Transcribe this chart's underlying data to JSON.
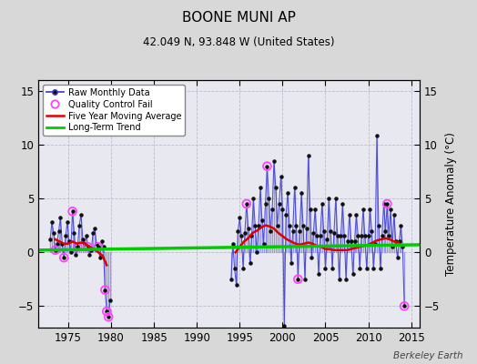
{
  "title": "BOONE MUNI AP",
  "subtitle": "42.049 N, 93.848 W (United States)",
  "ylabel": "Temperature Anomaly (°C)",
  "credit": "Berkeley Earth",
  "bg_color": "#d8d8d8",
  "plot_bg_color": "#e8e8f0",
  "ylim": [
    -7,
    16
  ],
  "xlim": [
    1971.5,
    2016.0
  ],
  "yticks": [
    -5,
    0,
    5,
    10,
    15
  ],
  "xticks": [
    1975,
    1980,
    1985,
    1990,
    1995,
    2000,
    2005,
    2010,
    2015
  ],
  "raw_color": "#4444cc",
  "raw_line_color": "#8888ee",
  "dot_color": "#111111",
  "qc_color": "#ff44ff",
  "ma_color": "#dd0000",
  "trend_color": "#00cc00",
  "gap_start": 1979.9,
  "gap_end": 1993.8,
  "raw_data": [
    [
      1972.9,
      1.2
    ],
    [
      1973.1,
      2.8
    ],
    [
      1973.3,
      1.8
    ],
    [
      1973.5,
      0.2
    ],
    [
      1973.7,
      0.8
    ],
    [
      1973.9,
      2.0
    ],
    [
      1974.1,
      3.2
    ],
    [
      1974.3,
      0.8
    ],
    [
      1974.5,
      -0.5
    ],
    [
      1974.7,
      1.5
    ],
    [
      1974.9,
      2.8
    ],
    [
      1975.1,
      1.0
    ],
    [
      1975.3,
      0.0
    ],
    [
      1975.5,
      3.8
    ],
    [
      1975.7,
      1.8
    ],
    [
      1975.9,
      -0.2
    ],
    [
      1976.1,
      0.5
    ],
    [
      1976.3,
      2.5
    ],
    [
      1976.5,
      3.5
    ],
    [
      1976.7,
      1.2
    ],
    [
      1976.9,
      0.8
    ],
    [
      1977.1,
      1.5
    ],
    [
      1977.3,
      0.5
    ],
    [
      1977.5,
      -0.2
    ],
    [
      1977.7,
      0.2
    ],
    [
      1977.9,
      1.8
    ],
    [
      1978.1,
      2.2
    ],
    [
      1978.3,
      0.8
    ],
    [
      1978.5,
      0.5
    ],
    [
      1978.7,
      -0.5
    ],
    [
      1978.9,
      1.0
    ],
    [
      1979.1,
      0.5
    ],
    [
      1979.3,
      -3.5
    ],
    [
      1979.5,
      -5.5
    ],
    [
      1979.7,
      -6.0
    ],
    [
      1979.9,
      -4.5
    ],
    [
      1994.0,
      -2.5
    ],
    [
      1994.2,
      0.8
    ],
    [
      1994.4,
      -1.5
    ],
    [
      1994.6,
      -3.0
    ],
    [
      1994.8,
      2.0
    ],
    [
      1995.0,
      3.2
    ],
    [
      1995.2,
      1.5
    ],
    [
      1995.4,
      -1.5
    ],
    [
      1995.6,
      1.8
    ],
    [
      1995.8,
      4.5
    ],
    [
      1996.0,
      2.2
    ],
    [
      1996.2,
      -1.0
    ],
    [
      1996.4,
      1.5
    ],
    [
      1996.6,
      5.0
    ],
    [
      1996.8,
      2.5
    ],
    [
      1997.0,
      0.0
    ],
    [
      1997.2,
      2.5
    ],
    [
      1997.4,
      6.0
    ],
    [
      1997.6,
      3.0
    ],
    [
      1997.8,
      0.8
    ],
    [
      1998.0,
      4.5
    ],
    [
      1998.2,
      8.0
    ],
    [
      1998.4,
      5.0
    ],
    [
      1998.6,
      2.0
    ],
    [
      1998.8,
      4.0
    ],
    [
      1999.0,
      8.5
    ],
    [
      1999.2,
      6.0
    ],
    [
      1999.4,
      2.5
    ],
    [
      1999.6,
      4.5
    ],
    [
      1999.8,
      7.0
    ],
    [
      2000.0,
      4.0
    ],
    [
      2000.2,
      -6.8
    ],
    [
      2000.4,
      3.5
    ],
    [
      2000.6,
      5.5
    ],
    [
      2000.8,
      2.5
    ],
    [
      2001.0,
      -1.0
    ],
    [
      2001.2,
      2.0
    ],
    [
      2001.4,
      6.0
    ],
    [
      2001.6,
      2.5
    ],
    [
      2001.8,
      -2.5
    ],
    [
      2002.0,
      2.0
    ],
    [
      2002.2,
      5.5
    ],
    [
      2002.4,
      2.5
    ],
    [
      2002.6,
      -2.5
    ],
    [
      2002.8,
      2.2
    ],
    [
      2003.0,
      9.0
    ],
    [
      2003.2,
      4.0
    ],
    [
      2003.4,
      -0.5
    ],
    [
      2003.6,
      1.8
    ],
    [
      2003.8,
      4.0
    ],
    [
      2004.0,
      1.5
    ],
    [
      2004.2,
      -2.0
    ],
    [
      2004.4,
      1.5
    ],
    [
      2004.6,
      4.5
    ],
    [
      2004.8,
      2.0
    ],
    [
      2005.0,
      -1.5
    ],
    [
      2005.2,
      1.2
    ],
    [
      2005.4,
      5.0
    ],
    [
      2005.6,
      2.0
    ],
    [
      2005.8,
      -1.5
    ],
    [
      2006.0,
      1.8
    ],
    [
      2006.2,
      5.0
    ],
    [
      2006.4,
      1.5
    ],
    [
      2006.6,
      -2.5
    ],
    [
      2006.8,
      1.5
    ],
    [
      2007.0,
      4.5
    ],
    [
      2007.2,
      1.5
    ],
    [
      2007.4,
      -2.5
    ],
    [
      2007.6,
      1.0
    ],
    [
      2007.8,
      3.5
    ],
    [
      2008.0,
      1.0
    ],
    [
      2008.2,
      -2.0
    ],
    [
      2008.4,
      1.0
    ],
    [
      2008.6,
      3.5
    ],
    [
      2008.8,
      1.5
    ],
    [
      2009.0,
      -1.5
    ],
    [
      2009.2,
      1.5
    ],
    [
      2009.4,
      4.0
    ],
    [
      2009.6,
      1.5
    ],
    [
      2009.8,
      -1.5
    ],
    [
      2010.0,
      1.5
    ],
    [
      2010.2,
      4.0
    ],
    [
      2010.4,
      2.0
    ],
    [
      2010.6,
      -1.5
    ],
    [
      2010.8,
      0.8
    ],
    [
      2011.0,
      10.8
    ],
    [
      2011.2,
      2.5
    ],
    [
      2011.4,
      -1.5
    ],
    [
      2011.6,
      1.5
    ],
    [
      2011.8,
      4.5
    ],
    [
      2012.0,
      2.0
    ],
    [
      2012.2,
      4.5
    ],
    [
      2012.4,
      1.5
    ],
    [
      2012.6,
      4.0
    ],
    [
      2012.8,
      0.5
    ],
    [
      2013.0,
      3.5
    ],
    [
      2013.2,
      1.0
    ],
    [
      2013.4,
      -0.5
    ],
    [
      2013.6,
      1.0
    ],
    [
      2013.8,
      2.5
    ],
    [
      2014.0,
      0.5
    ],
    [
      2014.2,
      -5.0
    ]
  ],
  "qc_fails_early": [
    [
      1973.5,
      0.2
    ],
    [
      1974.5,
      -0.5
    ],
    [
      1975.5,
      3.8
    ],
    [
      1976.1,
      0.5
    ],
    [
      1977.3,
      0.5
    ],
    [
      1978.5,
      0.5
    ],
    [
      1979.3,
      -3.5
    ],
    [
      1979.5,
      -5.5
    ],
    [
      1979.7,
      -6.0
    ]
  ],
  "qc_fails_late": [
    [
      1995.8,
      4.5
    ],
    [
      1998.2,
      8.0
    ],
    [
      2001.8,
      -2.5
    ],
    [
      2012.2,
      4.5
    ],
    [
      2014.2,
      -5.0
    ]
  ],
  "moving_avg_early": [
    [
      1973.5,
      1.2
    ],
    [
      1974.0,
      1.0
    ],
    [
      1974.5,
      0.8
    ],
    [
      1975.0,
      0.8
    ],
    [
      1975.5,
      1.0
    ],
    [
      1976.0,
      0.8
    ],
    [
      1976.5,
      0.9
    ],
    [
      1977.0,
      0.8
    ],
    [
      1977.5,
      0.5
    ],
    [
      1978.0,
      0.3
    ],
    [
      1978.5,
      0.0
    ],
    [
      1979.0,
      -0.3
    ],
    [
      1979.5,
      -1.2
    ]
  ],
  "moving_avg_late": [
    [
      1994.5,
      0.0
    ],
    [
      1995.0,
      0.5
    ],
    [
      1995.5,
      1.0
    ],
    [
      1996.0,
      1.3
    ],
    [
      1996.5,
      1.8
    ],
    [
      1997.0,
      2.0
    ],
    [
      1997.5,
      2.3
    ],
    [
      1998.0,
      2.5
    ],
    [
      1998.5,
      2.4
    ],
    [
      1999.0,
      2.2
    ],
    [
      1999.5,
      1.8
    ],
    [
      2000.0,
      1.5
    ],
    [
      2000.5,
      1.2
    ],
    [
      2001.0,
      1.0
    ],
    [
      2001.5,
      0.8
    ],
    [
      2002.0,
      0.7
    ],
    [
      2002.5,
      0.8
    ],
    [
      2003.0,
      0.9
    ],
    [
      2003.5,
      0.8
    ],
    [
      2004.0,
      0.6
    ],
    [
      2004.5,
      0.5
    ],
    [
      2005.0,
      0.3
    ],
    [
      2005.5,
      0.3
    ],
    [
      2006.0,
      0.2
    ],
    [
      2006.5,
      0.2
    ],
    [
      2007.0,
      0.2
    ],
    [
      2007.5,
      0.2
    ],
    [
      2008.0,
      0.3
    ],
    [
      2008.5,
      0.4
    ],
    [
      2009.0,
      0.5
    ],
    [
      2009.5,
      0.6
    ],
    [
      2010.0,
      0.7
    ],
    [
      2010.5,
      0.9
    ],
    [
      2011.0,
      1.1
    ],
    [
      2011.5,
      1.2
    ],
    [
      2012.0,
      1.3
    ],
    [
      2012.5,
      1.2
    ],
    [
      2013.0,
      1.0
    ],
    [
      2013.5,
      0.9
    ]
  ],
  "trend_x": [
    1971.5,
    2016.0
  ],
  "trend_y": [
    0.2,
    0.7
  ]
}
